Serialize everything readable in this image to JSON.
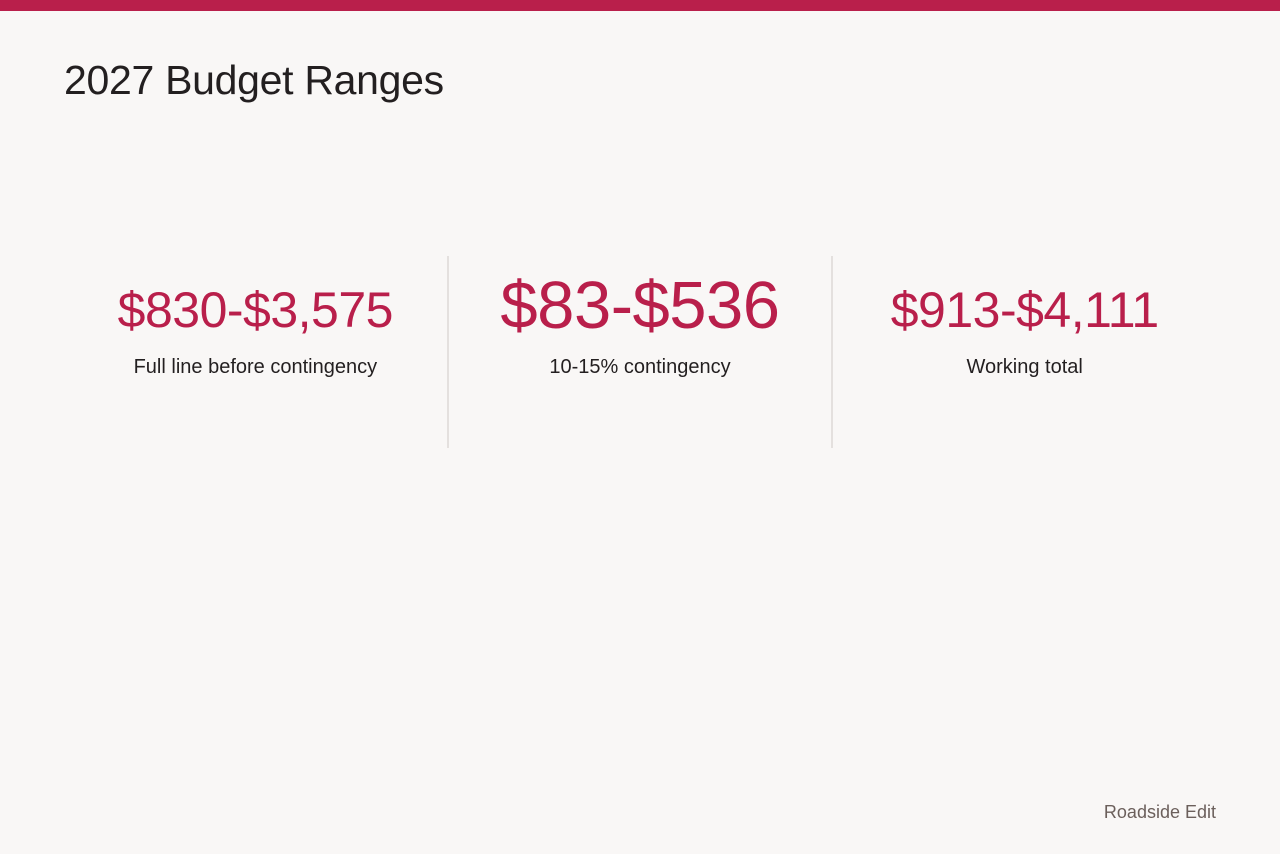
{
  "colors": {
    "accent": "#b91f4b",
    "background": "#f9f7f6",
    "text": "#231f20",
    "muted": "#6b5f5b",
    "divider": "#e4e0de"
  },
  "page": {
    "title": "2027 Budget Ranges"
  },
  "stats": [
    {
      "value": "$830-$3,575",
      "label": "Full line before contingency"
    },
    {
      "value": "$83-$536",
      "label": "10-15% contingency"
    },
    {
      "value": "$913-$4,111",
      "label": "Working total"
    }
  ],
  "footer": {
    "brand": "Roadside Edit"
  }
}
